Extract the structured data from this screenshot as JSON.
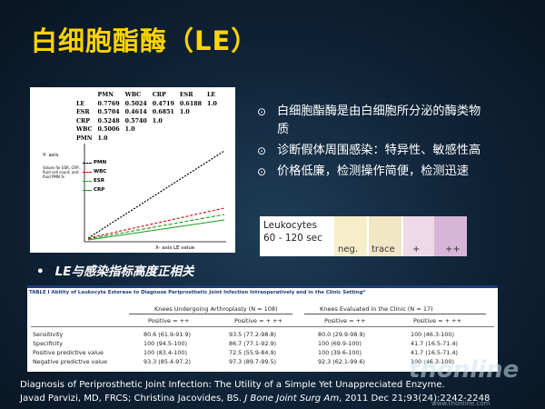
{
  "slide": {
    "title": "白细胞酯酶（LE）",
    "bullets": [
      "白细胞酯酶是由白细胞所分泌的酶类物质",
      "诊断假体周围感染：特异性、敏感性高",
      "价格低廉，检测操作简便，检测迅速"
    ],
    "bullet_icon": "circle-dot-icon",
    "sub_bullet": "LE与感染指标高度正相关",
    "citation_line1": "Diagnosis of Periprosthetic Joint Infection: The Utility of a Simple Yet Unappreciated Enzyme.",
    "citation_line2_a": "Javad Parvizi, MD, FRCS; Christina Jacovides, BS. ",
    "citation_journal": "J Bone Joint Surg Am",
    "citation_line2_b": ", 2011 Dec 21;93(24):2242-2248",
    "watermark": "thonline",
    "watermark_url": "www.thonline.com",
    "colors": {
      "title": "#ffd400",
      "background": "#0f2236",
      "table_title": "#1d3d7a"
    }
  },
  "figure": {
    "corr_header": [
      "",
      "PMN",
      "WBC",
      "CRP",
      "ESR",
      "LE"
    ],
    "corr_rows": [
      [
        "LE",
        "0.7769",
        "0.5024",
        "0.4719",
        "0.6188",
        "1.0"
      ],
      [
        "ESR",
        "0.5704",
        "0.4614",
        "0.6851",
        "1.0",
        ""
      ],
      [
        "CRP",
        "0.5248",
        "0.5740",
        "1.0",
        "",
        ""
      ],
      [
        "WBC",
        "0.5006",
        "1.0",
        "",
        "",
        ""
      ],
      [
        "PMN",
        "1.0",
        "",
        "",
        "",
        ""
      ]
    ],
    "y_axis_label": "Y- axis",
    "y_note": "Values for ESR, CRP, fluid cell count, and fluid PMN %",
    "legend": [
      "PMN",
      "WBC",
      "ESR",
      "CRP"
    ],
    "x_axis_label": "X- axis    LE value"
  },
  "strip": {
    "label_line1": "Leukocytes",
    "label_line2": "60 - 120 sec",
    "pads": [
      {
        "label": "",
        "color": "#ffffff"
      },
      {
        "label": "neg.",
        "color": "#f6eecb"
      },
      {
        "label": "trace",
        "color": "#f1e6c6"
      },
      {
        "label": "+",
        "color": "#efd9e6"
      },
      {
        "label": "++",
        "color": "#d7b5d8"
      }
    ]
  },
  "table": {
    "title": "TABLE I Ability of Leukocyte Esterase to Diagnose Periprosthetic Joint Infection Intraoperatively and in the Clinic Setting*",
    "group1": "Knees Undergoing Arthroplasty (N = 108)",
    "group2": "Knees Evaluated in the Clinic (N = 17)",
    "subheaders": [
      "Positive = ++",
      "Positive = + ++",
      "Positive = ++",
      "Positive = + ++"
    ],
    "rows": [
      [
        "Sensitivity",
        "80.6 (61.9-91.9)",
        "93.5 (77.2-98.8)",
        "80.0 (29.9-98.9)",
        "100 (46.3-100)"
      ],
      [
        "Specificity",
        "100 (94.5-100)",
        "86.7 (77.1-92.9)",
        "100 (69.9-100)",
        "41.7 (16.5-71.4)"
      ],
      [
        "Positive predictive value",
        "100 (83.4-100)",
        "72.5 (55.9-84.9)",
        "100 (39.6-100)",
        "41.7 (16.5-71.4)"
      ],
      [
        "Negative predictive value",
        "93.3 (85.4-97.2)",
        "97.3 (89.7-99.5)",
        "92.3 (62.1-99.6)",
        "100 (46.3-100)"
      ]
    ]
  }
}
